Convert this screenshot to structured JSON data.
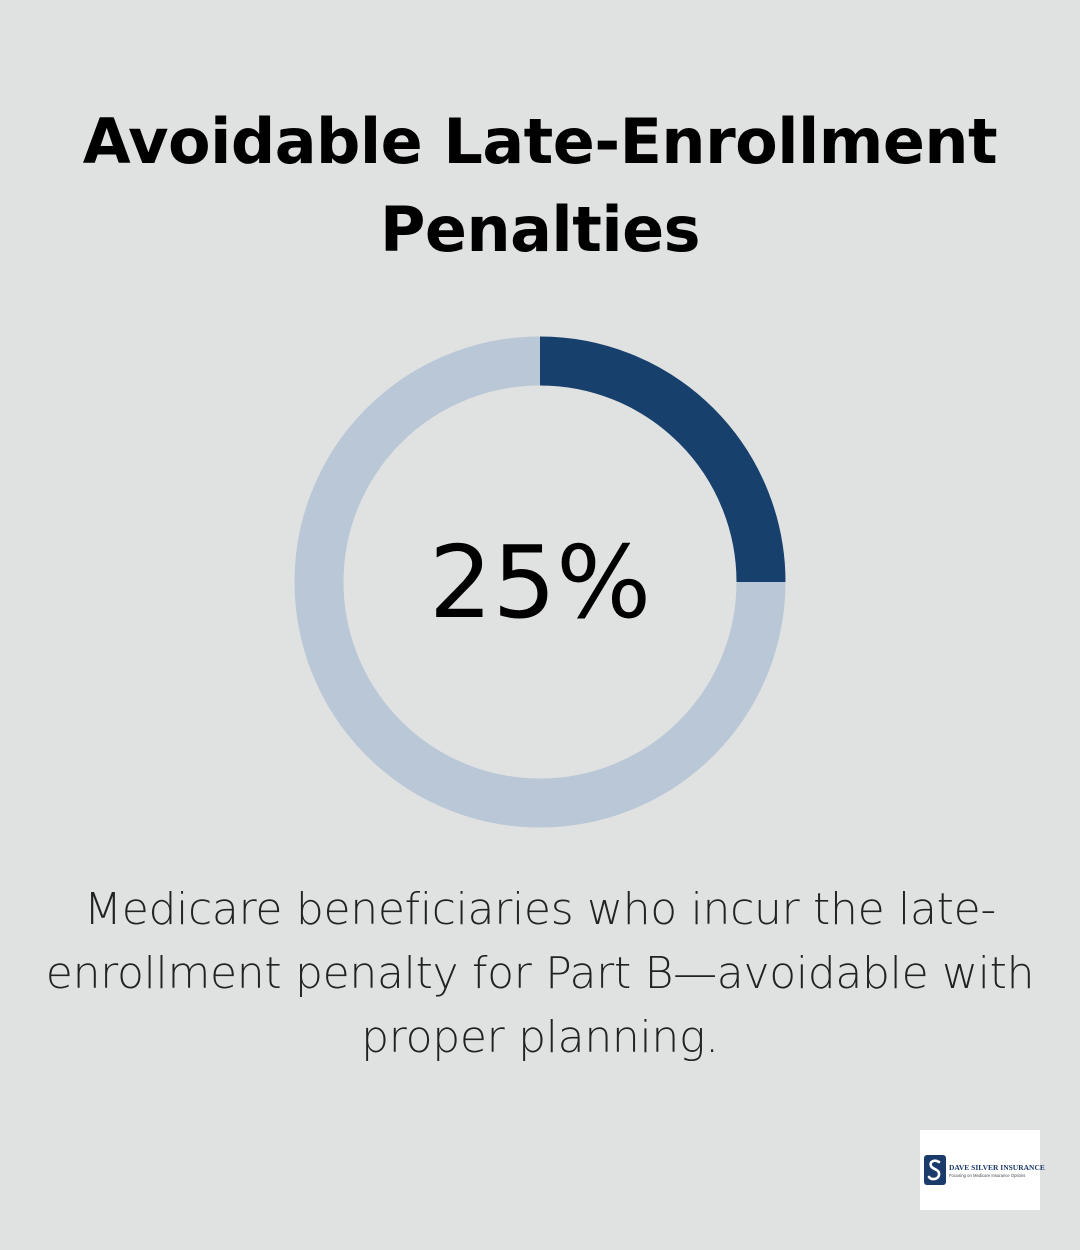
{
  "title": "Avoidable Late-Enrollment Penalties",
  "chart_data": {
    "type": "pie",
    "variant": "donut",
    "value_percent": 25,
    "label": "25%",
    "slices": [
      {
        "value": 25,
        "color": "#17406d"
      },
      {
        "value": 75,
        "color": "#b9c7d6"
      }
    ]
  },
  "caption": "Medicare beneficiaries who incur the late-enrollment penalty for Part B—avoidable with proper planning.",
  "logo": {
    "name": "DAVE SILVER INSURANCE",
    "tagline": "Focusing on Medicare Insurance Options"
  },
  "colors": {
    "background": "#e0e2e2",
    "accent": "#17406d",
    "track": "#b9c7d6"
  }
}
